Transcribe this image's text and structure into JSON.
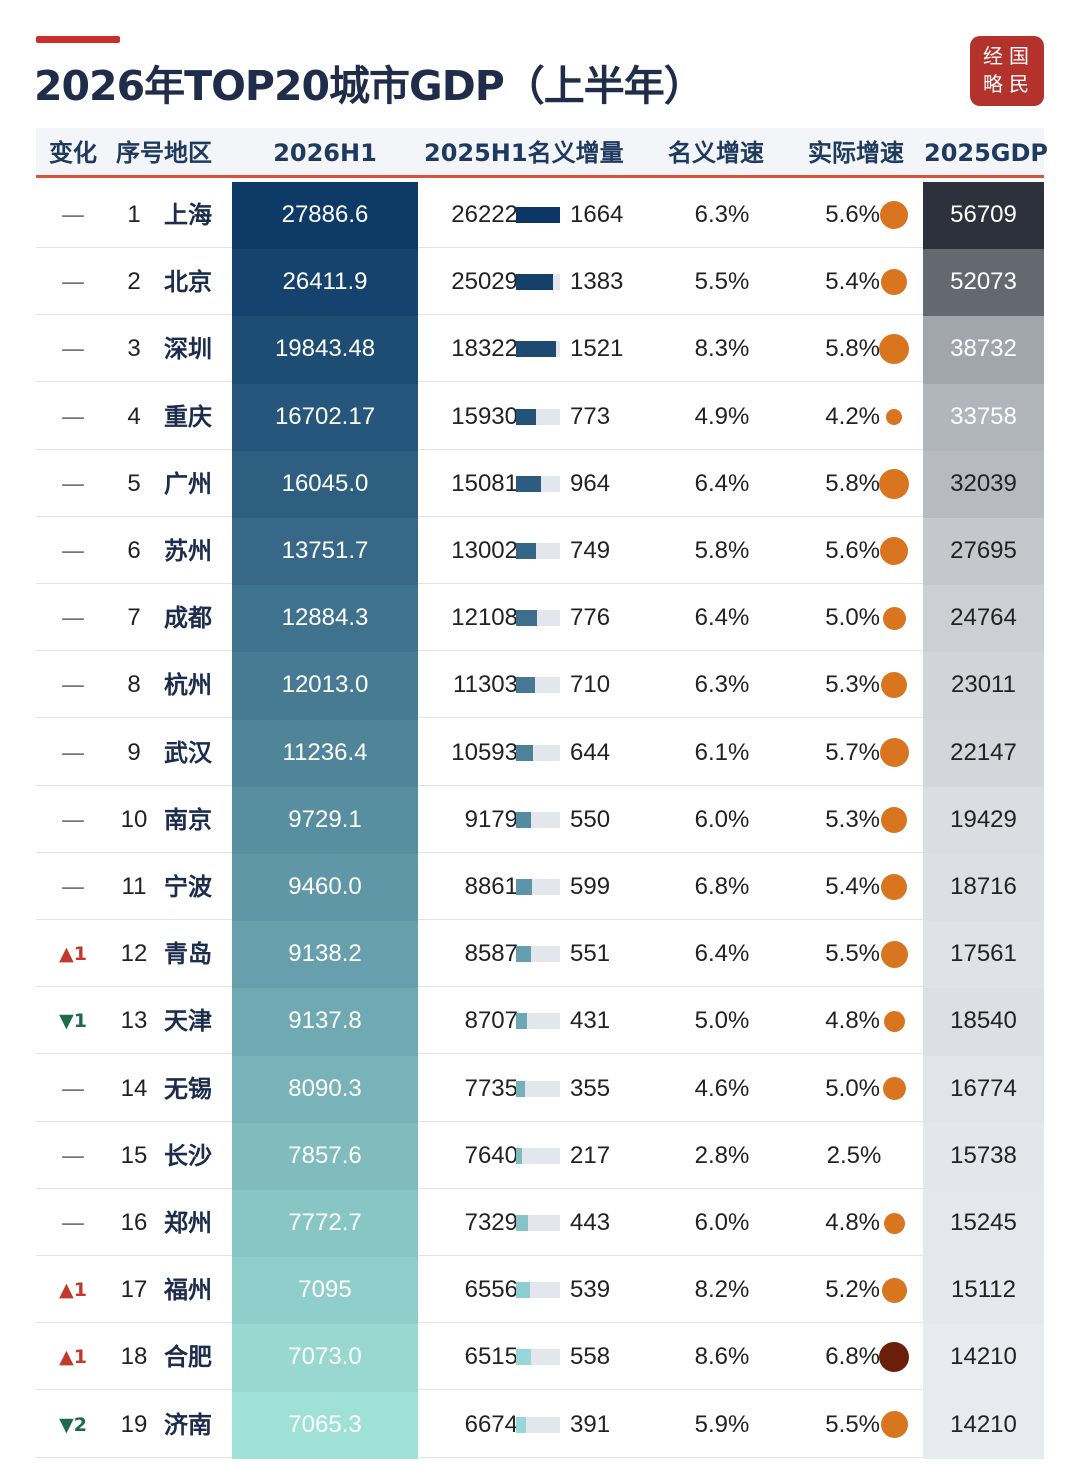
{
  "title": "2026年TOP20城市GDP（上半年）",
  "logo": {
    "line1": [
      "经",
      "国"
    ],
    "line2": [
      "略",
      "民"
    ]
  },
  "headers": {
    "change": "变化",
    "rank_region": "序号地区",
    "h1_2026": "2026H1",
    "h1_2025_increase": "2025H1名义增量",
    "nominal_growth": "名义增速",
    "real_growth": "实际增速",
    "gdp_2025": "2025GDP"
  },
  "colors": {
    "accent": "#c9302c",
    "header_line": "#d9533a",
    "dot": "#d9741f",
    "dot_dark": "#6b1f0a"
  },
  "chart_data": {
    "type": "table",
    "columns": [
      "变化",
      "序号",
      "地区",
      "2026H1",
      "2025H1",
      "名义增量",
      "名义增速",
      "实际增速",
      "2025GDP"
    ],
    "rows": [
      {
        "change": "—",
        "rank": "1",
        "city": "上海",
        "h1_2026": "27886.6",
        "h1_2025": "26222",
        "increase": "1664",
        "nominal": "6.3%",
        "real": "5.6%",
        "gdp_2025": "56709"
      },
      {
        "change": "—",
        "rank": "2",
        "city": "北京",
        "h1_2026": "26411.9",
        "h1_2025": "25029",
        "increase": "1383",
        "nominal": "5.5%",
        "real": "5.4%",
        "gdp_2025": "52073"
      },
      {
        "change": "—",
        "rank": "3",
        "city": "深圳",
        "h1_2026": "19843.48",
        "h1_2025": "18322",
        "increase": "1521",
        "nominal": "8.3%",
        "real": "5.8%",
        "gdp_2025": "38732"
      },
      {
        "change": "—",
        "rank": "4",
        "city": "重庆",
        "h1_2026": "16702.17",
        "h1_2025": "15930",
        "increase": "773",
        "nominal": "4.9%",
        "real": "4.2%",
        "gdp_2025": "33758"
      },
      {
        "change": "—",
        "rank": "5",
        "city": "广州",
        "h1_2026": "16045.0",
        "h1_2025": "15081",
        "increase": "964",
        "nominal": "6.4%",
        "real": "5.8%",
        "gdp_2025": "32039"
      },
      {
        "change": "—",
        "rank": "6",
        "city": "苏州",
        "h1_2026": "13751.7",
        "h1_2025": "13002",
        "increase": "749",
        "nominal": "5.8%",
        "real": "5.6%",
        "gdp_2025": "27695"
      },
      {
        "change": "—",
        "rank": "7",
        "city": "成都",
        "h1_2026": "12884.3",
        "h1_2025": "12108",
        "increase": "776",
        "nominal": "6.4%",
        "real": "5.0%",
        "gdp_2025": "24764"
      },
      {
        "change": "—",
        "rank": "8",
        "city": "杭州",
        "h1_2026": "12013.0",
        "h1_2025": "11303",
        "increase": "710",
        "nominal": "6.3%",
        "real": "5.3%",
        "gdp_2025": "23011"
      },
      {
        "change": "—",
        "rank": "9",
        "city": "武汉",
        "h1_2026": "11236.4",
        "h1_2025": "10593",
        "increase": "644",
        "nominal": "6.1%",
        "real": "5.7%",
        "gdp_2025": "22147"
      },
      {
        "change": "—",
        "rank": "10",
        "city": "南京",
        "h1_2026": "9729.1",
        "h1_2025": "9179",
        "increase": "550",
        "nominal": "6.0%",
        "real": "5.3%",
        "gdp_2025": "19429"
      },
      {
        "change": "—",
        "rank": "11",
        "city": "宁波",
        "h1_2026": "9460.0",
        "h1_2025": "8861",
        "increase": "599",
        "nominal": "6.8%",
        "real": "5.4%",
        "gdp_2025": "18716"
      },
      {
        "change": "▲1",
        "rank": "12",
        "city": "青岛",
        "h1_2026": "9138.2",
        "h1_2025": "8587",
        "increase": "551",
        "nominal": "6.4%",
        "real": "5.5%",
        "gdp_2025": "17561"
      },
      {
        "change": "▼1",
        "rank": "13",
        "city": "天津",
        "h1_2026": "9137.8",
        "h1_2025": "8707",
        "increase": "431",
        "nominal": "5.0%",
        "real": "4.8%",
        "gdp_2025": "18540"
      },
      {
        "change": "—",
        "rank": "14",
        "city": "无锡",
        "h1_2026": "8090.3",
        "h1_2025": "7735",
        "increase": "355",
        "nominal": "4.6%",
        "real": "5.0%",
        "gdp_2025": "16774"
      },
      {
        "change": "—",
        "rank": "15",
        "city": "长沙",
        "h1_2026": "7857.6",
        "h1_2025": "7640",
        "increase": "217",
        "nominal": "2.8%",
        "real": "2.5%",
        "gdp_2025": "15738"
      },
      {
        "change": "—",
        "rank": "16",
        "city": "郑州",
        "h1_2026": "7772.7",
        "h1_2025": "7329",
        "increase": "443",
        "nominal": "6.0%",
        "real": "4.8%",
        "gdp_2025": "15245"
      },
      {
        "change": "▲1",
        "rank": "17",
        "city": "福州",
        "h1_2026": "7095",
        "h1_2025": "6556",
        "increase": "539",
        "nominal": "8.2%",
        "real": "5.2%",
        "gdp_2025": "15112"
      },
      {
        "change": "▲1",
        "rank": "18",
        "city": "合肥",
        "h1_2026": "7073.0",
        "h1_2025": "6515",
        "increase": "558",
        "nominal": "8.6%",
        "real": "6.8%",
        "gdp_2025": "14210"
      },
      {
        "change": "▼2",
        "rank": "19",
        "city": "济南",
        "h1_2026": "7065.3",
        "h1_2025": "6674",
        "increase": "391",
        "nominal": "5.9%",
        "real": "5.5%",
        "gdp_2025": "14210"
      }
    ]
  }
}
